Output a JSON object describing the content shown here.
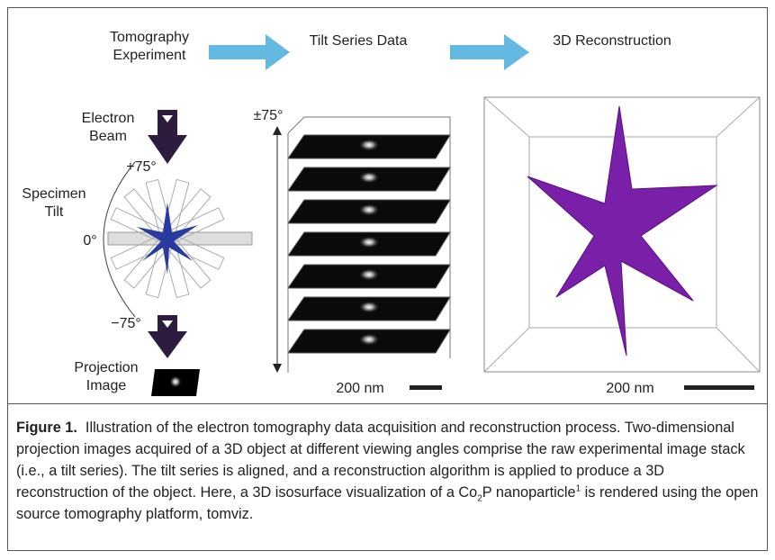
{
  "figure": {
    "headers": [
      "Tomography\nExperiment",
      "Tilt Series Data",
      "3D Reconstruction"
    ],
    "left_panel": {
      "beam_label": "Electron\nBeam",
      "plus_angle": "+75°",
      "tilt_label": "Specimen\nTilt",
      "zero_angle": "0°",
      "minus_angle": "−75°",
      "projection_label": "Projection\nImage"
    },
    "middle_panel": {
      "range_label": "±75°",
      "scale_label": "200 nm"
    },
    "right_panel": {
      "scale_label": "200 nm"
    }
  },
  "caption": {
    "label": "Figure 1.",
    "text": "Illustration of the electron tomography data acquisition and reconstruction process. Two-dimensional projection images acquired of a 3D object at different viewing angles comprise the raw experimental image stack (i.e., a tilt series). The tilt series is aligned, and a reconstruction algorithm is applied to produce a 3D reconstruction of the object. Here, a 3D isosurface visualization of a Co",
    "subscript": "2",
    "text_mid": "P nanoparticle",
    "superscript": "1",
    "text_end": " is rendered using the open source tomography platform, tomviz."
  }
}
